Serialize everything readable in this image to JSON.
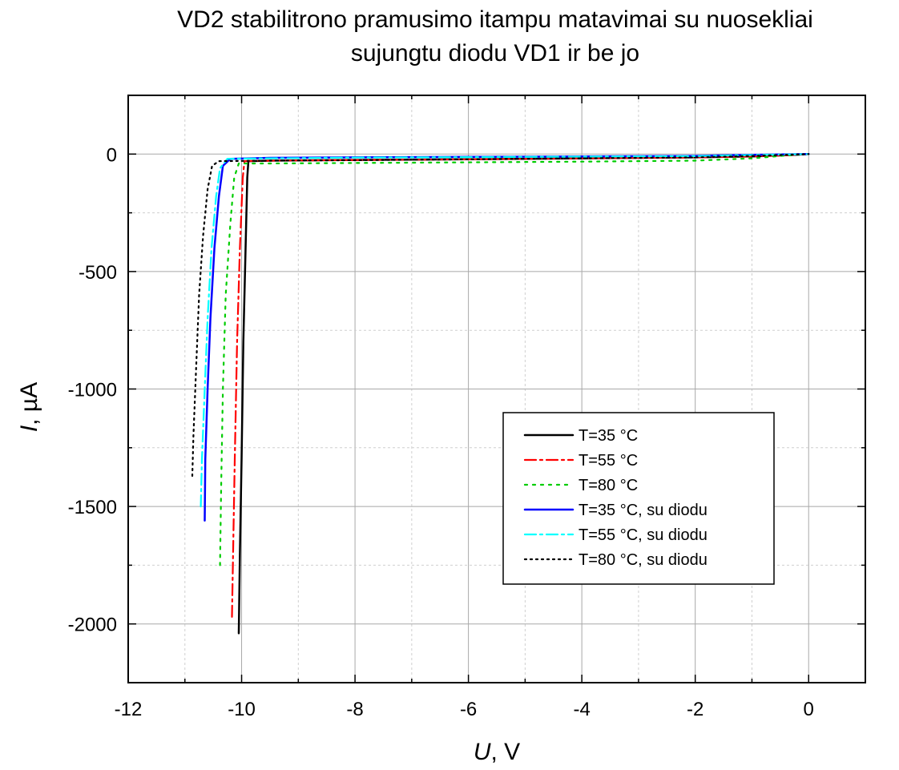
{
  "chart_data": {
    "type": "line",
    "title_lines": [
      "VD2 stabilitrono pramusimo itampu matavimai su nuosekliai",
      "sujungtu diodu VD1 ir be jo"
    ],
    "xlabel": {
      "symbol": "U",
      "unit": ", V"
    },
    "ylabel": {
      "symbol": "I",
      "unit": ", µA"
    },
    "xlim": [
      -12,
      1
    ],
    "ylim": [
      -2250,
      250
    ],
    "xticks": [
      {
        "v": -12,
        "label": "-12"
      },
      {
        "v": -10,
        "label": "-10"
      },
      {
        "v": -8,
        "label": "-8"
      },
      {
        "v": -6,
        "label": "-6"
      },
      {
        "v": -4,
        "label": "-4"
      },
      {
        "v": -2,
        "label": "-2"
      },
      {
        "v": 0,
        "label": "0"
      }
    ],
    "yticks": [
      {
        "v": 0,
        "label": "0"
      },
      {
        "v": -500,
        "label": "-500"
      },
      {
        "v": -1000,
        "label": "-1000"
      },
      {
        "v": -1500,
        "label": "-1500"
      },
      {
        "v": -2000,
        "label": "-2000"
      }
    ],
    "grid": true,
    "legend_position": "lower-right",
    "series": [
      {
        "name": "T=35 °C",
        "color": "#000000",
        "style": "solid",
        "x": [
          -10.05,
          -10.03,
          -10.0,
          -9.97,
          -9.93,
          -9.9,
          -9.88,
          -9.5,
          -8,
          -6,
          -4,
          -2,
          -1,
          -0.3,
          0
        ],
        "y": [
          -2040,
          -1700,
          -1300,
          -800,
          -400,
          -100,
          -30,
          -28,
          -25,
          -22,
          -18,
          -14,
          -10,
          -4,
          0
        ]
      },
      {
        "name": "T=55 °C",
        "color": "#ff0000",
        "style": "dashdot",
        "x": [
          -10.17,
          -10.15,
          -10.12,
          -10.08,
          -10.03,
          -9.98,
          -9.95,
          -9.5,
          -8,
          -6,
          -4,
          -2,
          -1,
          -0.3,
          0
        ],
        "y": [
          -1970,
          -1700,
          -1300,
          -800,
          -400,
          -100,
          -30,
          -28,
          -25,
          -22,
          -18,
          -14,
          -10,
          -4,
          0
        ]
      },
      {
        "name": "T=80 °C",
        "color": "#00cc00",
        "style": "dot",
        "x": [
          -10.38,
          -10.36,
          -10.33,
          -10.28,
          -10.2,
          -10.13,
          -10.05,
          -9.5,
          -8,
          -6,
          -4,
          -2,
          -1,
          -0.4,
          0
        ],
        "y": [
          -1750,
          -1400,
          -1000,
          -600,
          -300,
          -100,
          -40,
          -40,
          -38,
          -35,
          -32,
          -28,
          -18,
          -6,
          0
        ]
      },
      {
        "name": "T=35 °C, su diodu",
        "color": "#0000ff",
        "style": "solid",
        "x": [
          -10.65,
          -10.64,
          -10.6,
          -10.55,
          -10.48,
          -10.4,
          -10.33,
          -10.2,
          -9.5,
          -8,
          -6,
          -4,
          -2,
          -1,
          0
        ],
        "y": [
          -1560,
          -1300,
          -1000,
          -700,
          -400,
          -180,
          -50,
          -20,
          -16,
          -14,
          -12,
          -10,
          -8,
          -3,
          0
        ]
      },
      {
        "name": "T=55 °C, su diodu",
        "color": "#00ffff",
        "style": "dashdot",
        "x": [
          -10.72,
          -10.7,
          -10.65,
          -10.6,
          -10.53,
          -10.45,
          -10.38,
          -10.25,
          -9.5,
          -8,
          -6,
          -4,
          -2,
          -1,
          0
        ],
        "y": [
          -1500,
          -1300,
          -1000,
          -700,
          -400,
          -180,
          -60,
          -20,
          -18,
          -15,
          -13,
          -11,
          -9,
          -4,
          0
        ]
      },
      {
        "name": "T=80 °C, su diodu",
        "color": "#000000",
        "style": "dotted",
        "x": [
          -10.87,
          -10.85,
          -10.8,
          -10.75,
          -10.68,
          -10.6,
          -10.52,
          -10.4,
          -9.5,
          -8,
          -6,
          -4,
          -2,
          -1,
          0
        ],
        "y": [
          -1370,
          -1200,
          -900,
          -600,
          -350,
          -150,
          -50,
          -30,
          -28,
          -26,
          -22,
          -18,
          -14,
          -8,
          0
        ]
      }
    ]
  }
}
